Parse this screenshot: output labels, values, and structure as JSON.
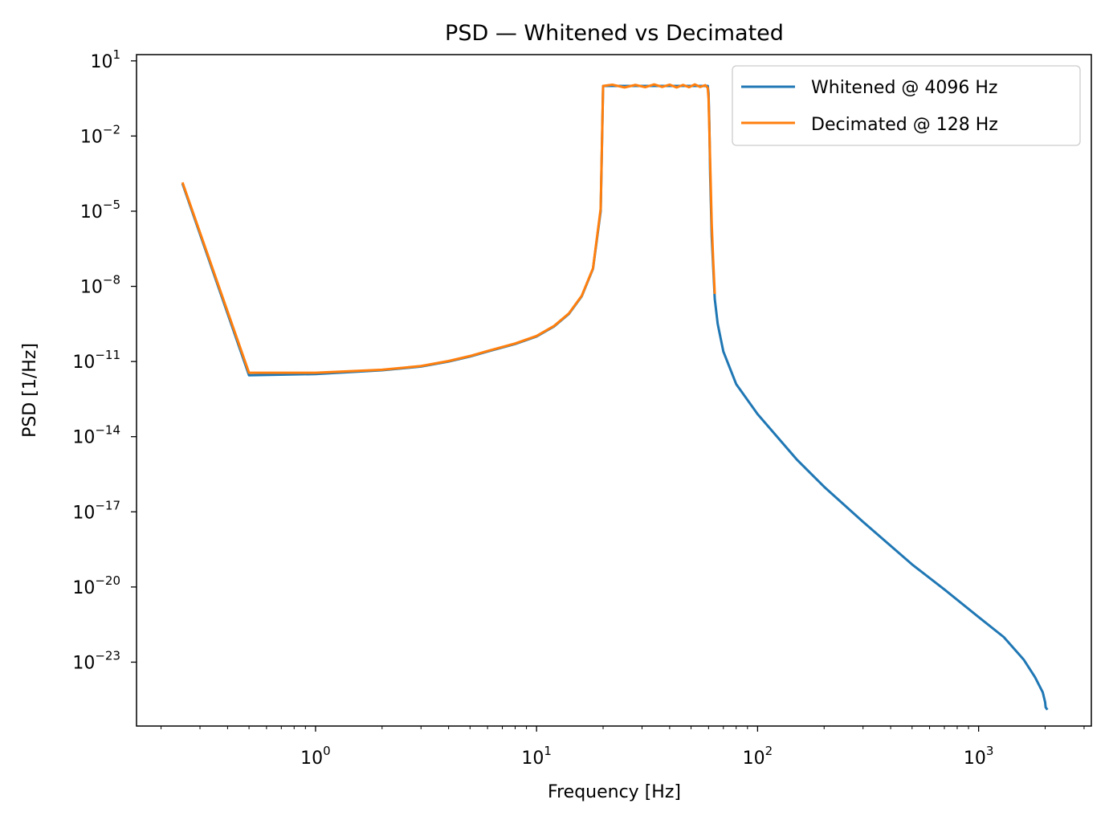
{
  "chart_data": {
    "type": "line",
    "title": "PSD — Whitened vs Decimated",
    "xlabel": "Frequency [Hz]",
    "ylabel": "PSD [1/Hz]",
    "xscale": "log",
    "yscale": "log",
    "xlim_log10": [
      -0.81,
      3.51
    ],
    "ylim_log10": [
      -25.55,
      1.25
    ],
    "x_ticks": [
      {
        "exp": 0,
        "base": "10",
        "sup": "0"
      },
      {
        "exp": 1,
        "base": "10",
        "sup": "1"
      },
      {
        "exp": 2,
        "base": "10",
        "sup": "2"
      },
      {
        "exp": 3,
        "base": "10",
        "sup": "3"
      }
    ],
    "y_ticks": [
      {
        "exp": 1,
        "base": "10",
        "sup": "1"
      },
      {
        "exp": -2,
        "base": "10",
        "sup": "−2"
      },
      {
        "exp": -5,
        "base": "10",
        "sup": "−5"
      },
      {
        "exp": -8,
        "base": "10",
        "sup": "−8"
      },
      {
        "exp": -11,
        "base": "10",
        "sup": "−11"
      },
      {
        "exp": -14,
        "base": "10",
        "sup": "−14"
      },
      {
        "exp": -17,
        "base": "10",
        "sup": "−17"
      },
      {
        "exp": -20,
        "base": "10",
        "sup": "−20"
      },
      {
        "exp": -23,
        "base": "10",
        "sup": "−23"
      }
    ],
    "legend_position": "top-right",
    "series": [
      {
        "name": "Whitened @ 4096 Hz",
        "color": "#1f77b4",
        "x": [
          0.25,
          0.5,
          1,
          2,
          3,
          4,
          5,
          6,
          8,
          10,
          12,
          14,
          16,
          18,
          19.5,
          20,
          22,
          30,
          40,
          50,
          55,
          58,
          59.5,
          60,
          60.5,
          61,
          62,
          64,
          66,
          70,
          80,
          100,
          150,
          200,
          300,
          500,
          700,
          1000,
          1300,
          1600,
          1800,
          1950,
          2000,
          2010,
          2048
        ],
        "y_log10": [
          -3.9,
          -11.55,
          -11.5,
          -11.35,
          -11.2,
          -11.0,
          -10.8,
          -10.6,
          -10.3,
          -10.0,
          -9.6,
          -9.1,
          -8.4,
          -7.3,
          -5.0,
          0.0,
          0.0,
          0.0,
          0.0,
          0.0,
          0.0,
          0.0,
          0.0,
          -0.3,
          -1.5,
          -3.5,
          -6.0,
          -8.5,
          -9.5,
          -10.6,
          -11.9,
          -13.1,
          -14.9,
          -16.0,
          -17.4,
          -19.1,
          -20.1,
          -21.2,
          -22.0,
          -22.9,
          -23.6,
          -24.2,
          -24.6,
          -24.8,
          -24.9
        ]
      },
      {
        "name": "Decimated @ 128 Hz",
        "color": "#ff7f0e",
        "x": [
          0.25,
          0.5,
          1,
          2,
          3,
          4,
          5,
          6,
          8,
          10,
          12,
          14,
          16,
          18,
          19.5,
          20,
          22,
          25,
          28,
          31,
          34,
          37,
          40,
          43,
          46,
          49,
          52,
          55,
          58,
          59.5,
          60,
          61,
          62,
          63,
          64
        ],
        "y_log10": [
          -3.85,
          -11.45,
          -11.45,
          -11.33,
          -11.18,
          -10.98,
          -10.78,
          -10.58,
          -10.28,
          -9.98,
          -9.58,
          -9.08,
          -8.38,
          -7.28,
          -4.9,
          0.0,
          0.05,
          -0.06,
          0.04,
          -0.05,
          0.06,
          -0.04,
          0.05,
          -0.06,
          0.04,
          -0.05,
          0.06,
          -0.04,
          0.03,
          -0.08,
          -0.5,
          -3.0,
          -5.5,
          -7.0,
          -8.3
        ]
      }
    ]
  }
}
